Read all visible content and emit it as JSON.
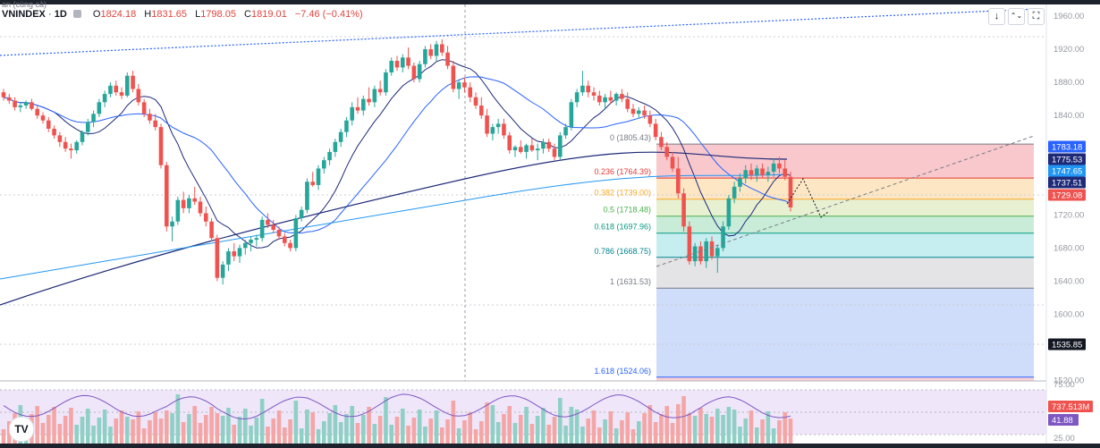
{
  "header": {
    "symbol": "VNINDEX",
    "sep": "·",
    "interval": "1D",
    "subtitle": "an (cùng cả)",
    "o_label": "O",
    "o_value": "1824.18",
    "h_label": "H",
    "h_value": "1831.65",
    "l_label": "L",
    "l_value": "1798.05",
    "c_label": "C",
    "c_value": "1819.01",
    "change": "−7.46 (−0.41%)"
  },
  "toolbar": {
    "down_icon": "↓",
    "collapse_icon": "⌃⌄",
    "fullscreen_icon": "⛶"
  },
  "logo": {
    "text": "TV"
  },
  "colors": {
    "up": "#26a69a",
    "down": "#ef5350",
    "ma_dark": "#1e2a78",
    "ma_blue": "#2962ff",
    "ma_teal": "#2196f3"
  },
  "chart_data": {
    "type": "candlestick",
    "y_ticks": [
      "1960.00",
      "1920.00",
      "1880.00",
      "1840.00",
      "1800.00",
      "1760.00",
      "1720.00",
      "1680.00",
      "1640.00",
      "1600.00",
      "1560.00",
      "1520.00"
    ],
    "price_labels": [
      {
        "text": "1783.18",
        "color": "#2962ff"
      },
      {
        "text": "1775.53",
        "color": "#1e2a78"
      },
      {
        "text": "1747.65",
        "color": "#2196f3"
      },
      {
        "text": "1737.51",
        "color": "#1e2a78"
      },
      {
        "text": "1729.08",
        "color": "#ef5350"
      },
      {
        "text": "1535.85",
        "color": "#131722"
      }
    ],
    "fib_levels": [
      {
        "ratio": "0",
        "price": "1805.43",
        "label": "0 (1805.43)",
        "color": "#787b86"
      },
      {
        "ratio": "0.236",
        "price": "1764.39",
        "label": "0.236 (1764.39)",
        "color": "#e53935"
      },
      {
        "ratio": "0.382",
        "price": "1739.00",
        "label": "0.382 (1739.00)",
        "color": "#f9a825"
      },
      {
        "ratio": "0.5",
        "price": "1718.48",
        "label": "0.5 (1718.48)",
        "color": "#4caf50"
      },
      {
        "ratio": "0.618",
        "price": "1697.96",
        "label": "0.618 (1697.96)",
        "color": "#089981"
      },
      {
        "ratio": "0.786",
        "price": "1668.75",
        "label": "0.786 (1668.75)",
        "color": "#00838f"
      },
      {
        "ratio": "1",
        "price": "1631.53",
        "label": "1 (1631.53)",
        "color": "#787b86"
      },
      {
        "ratio": "1.618",
        "price": "1524.06",
        "label": "1.618 (1524.06)",
        "color": "#2962ff"
      }
    ],
    "indicator": {
      "ticks": [
        "75.00",
        "25.00"
      ],
      "volume_label": "737.513M",
      "rsi_label": "41.88"
    },
    "candles": [
      [
        1868,
        1872,
        1858,
        1862
      ],
      [
        1862,
        1866,
        1854,
        1858
      ],
      [
        1858,
        1862,
        1846,
        1850
      ],
      [
        1850,
        1856,
        1844,
        1852
      ],
      [
        1852,
        1858,
        1848,
        1856
      ],
      [
        1856,
        1860,
        1846,
        1848
      ],
      [
        1848,
        1852,
        1836,
        1840
      ],
      [
        1840,
        1844,
        1830,
        1834
      ],
      [
        1834,
        1838,
        1820,
        1824
      ],
      [
        1824,
        1828,
        1812,
        1816
      ],
      [
        1816,
        1820,
        1802,
        1808
      ],
      [
        1808,
        1814,
        1796,
        1800
      ],
      [
        1800,
        1806,
        1788,
        1798
      ],
      [
        1798,
        1810,
        1794,
        1808
      ],
      [
        1808,
        1822,
        1804,
        1820
      ],
      [
        1820,
        1836,
        1816,
        1832
      ],
      [
        1832,
        1846,
        1826,
        1842
      ],
      [
        1842,
        1860,
        1838,
        1856
      ],
      [
        1856,
        1870,
        1850,
        1866
      ],
      [
        1866,
        1880,
        1862,
        1876
      ],
      [
        1876,
        1882,
        1864,
        1868
      ],
      [
        1868,
        1874,
        1860,
        1864
      ],
      [
        1864,
        1892,
        1862,
        1888
      ],
      [
        1888,
        1894,
        1868,
        1872
      ],
      [
        1872,
        1878,
        1852,
        1856
      ],
      [
        1856,
        1860,
        1838,
        1842
      ],
      [
        1842,
        1848,
        1830,
        1834
      ],
      [
        1834,
        1842,
        1822,
        1826
      ],
      [
        1826,
        1830,
        1776,
        1780
      ],
      [
        1780,
        1784,
        1700,
        1706
      ],
      [
        1706,
        1718,
        1688,
        1712
      ],
      [
        1712,
        1742,
        1708,
        1738
      ],
      [
        1738,
        1748,
        1722,
        1728
      ],
      [
        1728,
        1744,
        1722,
        1740
      ],
      [
        1740,
        1754,
        1732,
        1736
      ],
      [
        1736,
        1742,
        1718,
        1722
      ],
      [
        1722,
        1730,
        1706,
        1712
      ],
      [
        1712,
        1716,
        1688,
        1692
      ],
      [
        1692,
        1696,
        1640,
        1644
      ],
      [
        1644,
        1664,
        1636,
        1660
      ],
      [
        1660,
        1680,
        1652,
        1676
      ],
      [
        1676,
        1686,
        1664,
        1670
      ],
      [
        1670,
        1684,
        1662,
        1680
      ],
      [
        1680,
        1690,
        1672,
        1686
      ],
      [
        1686,
        1694,
        1676,
        1690
      ],
      [
        1690,
        1696,
        1682,
        1692
      ],
      [
        1692,
        1718,
        1688,
        1714
      ],
      [
        1714,
        1722,
        1704,
        1708
      ],
      [
        1708,
        1714,
        1698,
        1702
      ],
      [
        1702,
        1706,
        1690,
        1694
      ],
      [
        1694,
        1698,
        1682,
        1686
      ],
      [
        1686,
        1690,
        1676,
        1680
      ],
      [
        1680,
        1720,
        1676,
        1716
      ],
      [
        1716,
        1730,
        1712,
        1726
      ],
      [
        1726,
        1764,
        1722,
        1760
      ],
      [
        1760,
        1772,
        1754,
        1756
      ],
      [
        1756,
        1780,
        1750,
        1776
      ],
      [
        1776,
        1790,
        1770,
        1786
      ],
      [
        1786,
        1800,
        1780,
        1796
      ],
      [
        1796,
        1812,
        1790,
        1808
      ],
      [
        1808,
        1824,
        1802,
        1820
      ],
      [
        1820,
        1838,
        1814,
        1834
      ],
      [
        1834,
        1856,
        1828,
        1850
      ],
      [
        1850,
        1862,
        1842,
        1846
      ],
      [
        1846,
        1864,
        1840,
        1860
      ],
      [
        1860,
        1874,
        1852,
        1856
      ],
      [
        1856,
        1876,
        1850,
        1872
      ],
      [
        1872,
        1882,
        1864,
        1868
      ],
      [
        1868,
        1896,
        1864,
        1892
      ],
      [
        1892,
        1910,
        1888,
        1906
      ],
      [
        1906,
        1912,
        1894,
        1898
      ],
      [
        1898,
        1914,
        1892,
        1910
      ],
      [
        1910,
        1922,
        1896,
        1900
      ],
      [
        1900,
        1904,
        1880,
        1884
      ],
      [
        1884,
        1906,
        1880,
        1902
      ],
      [
        1902,
        1924,
        1898,
        1920
      ],
      [
        1920,
        1926,
        1908,
        1912
      ],
      [
        1912,
        1930,
        1906,
        1926
      ],
      [
        1926,
        1932,
        1912,
        1916
      ],
      [
        1916,
        1924,
        1896,
        1900
      ],
      [
        1900,
        1906,
        1868,
        1872
      ],
      [
        1872,
        1884,
        1860,
        1880
      ],
      [
        1880,
        1886,
        1868,
        1874
      ],
      [
        1874,
        1880,
        1856,
        1862
      ],
      [
        1862,
        1868,
        1848,
        1852
      ],
      [
        1852,
        1862,
        1836,
        1840
      ],
      [
        1840,
        1848,
        1814,
        1818
      ],
      [
        1818,
        1830,
        1810,
        1826
      ],
      [
        1826,
        1836,
        1818,
        1830
      ],
      [
        1830,
        1836,
        1812,
        1816
      ],
      [
        1816,
        1820,
        1794,
        1798
      ],
      [
        1798,
        1804,
        1790,
        1802
      ],
      [
        1802,
        1810,
        1794,
        1796
      ],
      [
        1796,
        1806,
        1788,
        1804
      ],
      [
        1804,
        1812,
        1796,
        1798
      ],
      [
        1798,
        1806,
        1786,
        1800
      ],
      [
        1800,
        1812,
        1794,
        1808
      ],
      [
        1808,
        1812,
        1796,
        1800
      ],
      [
        1800,
        1806,
        1786,
        1790
      ],
      [
        1790,
        1820,
        1786,
        1816
      ],
      [
        1816,
        1830,
        1812,
        1826
      ],
      [
        1826,
        1860,
        1822,
        1856
      ],
      [
        1856,
        1872,
        1850,
        1868
      ],
      [
        1868,
        1894,
        1864,
        1876
      ],
      [
        1876,
        1882,
        1862,
        1868
      ],
      [
        1868,
        1874,
        1858,
        1864
      ],
      [
        1864,
        1870,
        1852,
        1856
      ],
      [
        1856,
        1866,
        1848,
        1862
      ],
      [
        1862,
        1870,
        1854,
        1858
      ],
      [
        1858,
        1868,
        1852,
        1866
      ],
      [
        1866,
        1872,
        1856,
        1860
      ],
      [
        1860,
        1868,
        1844,
        1848
      ],
      [
        1848,
        1854,
        1838,
        1842
      ],
      [
        1842,
        1850,
        1836,
        1846
      ],
      [
        1846,
        1852,
        1836,
        1840
      ],
      [
        1840,
        1846,
        1826,
        1830
      ],
      [
        1830,
        1836,
        1810,
        1814
      ],
      [
        1814,
        1820,
        1798,
        1802
      ],
      [
        1802,
        1808,
        1786,
        1790
      ],
      [
        1790,
        1796,
        1772,
        1776
      ],
      [
        1776,
        1790,
        1740,
        1746
      ],
      [
        1746,
        1752,
        1700,
        1706
      ],
      [
        1706,
        1712,
        1660,
        1664
      ],
      [
        1664,
        1686,
        1658,
        1682
      ],
      [
        1682,
        1688,
        1660,
        1664
      ],
      [
        1664,
        1692,
        1656,
        1688
      ],
      [
        1688,
        1694,
        1666,
        1670
      ],
      [
        1670,
        1684,
        1650,
        1680
      ],
      [
        1680,
        1712,
        1676,
        1706
      ],
      [
        1706,
        1744,
        1702,
        1740
      ],
      [
        1740,
        1760,
        1734,
        1754
      ],
      [
        1754,
        1770,
        1748,
        1764
      ],
      [
        1764,
        1780,
        1758,
        1774
      ],
      [
        1774,
        1782,
        1762,
        1768
      ],
      [
        1768,
        1780,
        1760,
        1776
      ],
      [
        1776,
        1782,
        1764,
        1768
      ],
      [
        1768,
        1778,
        1760,
        1772
      ],
      [
        1772,
        1788,
        1766,
        1782
      ],
      [
        1782,
        1790,
        1770,
        1776
      ],
      [
        1776,
        1786,
        1762,
        1766
      ],
      [
        1766,
        1772,
        1724,
        1729
      ]
    ]
  }
}
